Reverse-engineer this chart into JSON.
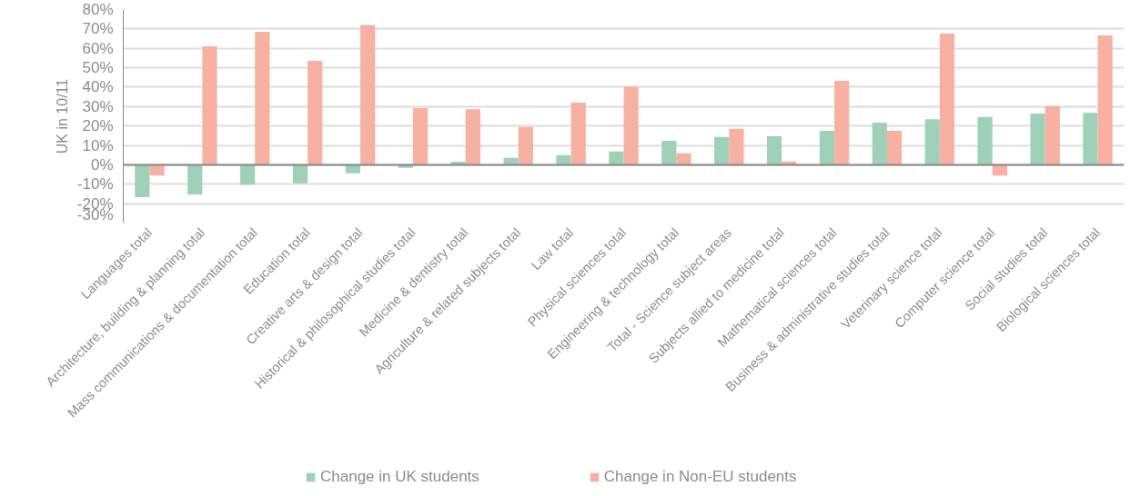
{
  "chart_data": {
    "type": "bar",
    "ylabel": "UK in 10/11",
    "categories": [
      "Languages total",
      "Architecture, building & planning total",
      "Mass communications & documentation total",
      "Education total",
      "Creative arts & design total",
      "Historical & philosophical studies total",
      "Medicine & dentistry total",
      "Agriculture & related subjects total",
      "Law total",
      "Physical sciences total",
      "Engineering & technology total",
      "Total - Science subject areas",
      "Subjects allied to medicine total",
      "Mathematical sciences total",
      "Business & administrative studies total",
      "Veterinary science total",
      "Computer science total",
      "Social studies total",
      "Biological sciences total"
    ],
    "series": [
      {
        "name": "Change in UK students",
        "color": "#9fd1b9",
        "values": [
          -16.7,
          -15.2,
          -10.2,
          -9.5,
          -4.4,
          -1.6,
          1.6,
          3.6,
          5.0,
          6.9,
          12.4,
          14.4,
          14.7,
          17.5,
          21.7,
          23.5,
          24.7,
          26.4,
          26.7
        ]
      },
      {
        "name": "Change in Non-EU students",
        "color": "#f8b0a2",
        "values": [
          -5.6,
          61.0,
          68.5,
          53.5,
          72.1,
          29.2,
          28.6,
          19.5,
          32.0,
          40.2,
          5.9,
          18.6,
          1.7,
          43.3,
          17.5,
          67.6,
          -5.6,
          30.3,
          66.7
        ]
      }
    ],
    "ylim": [
      -30,
      80
    ],
    "yticks": [
      {
        "value": -30,
        "label": "-30%"
      },
      {
        "value": -20,
        "label": "-20%"
      },
      {
        "value": -10,
        "label": "-10%"
      },
      {
        "value": 0,
        "label": "0%"
      },
      {
        "value": 10,
        "label": "10%"
      },
      {
        "value": 20,
        "label": "20%"
      },
      {
        "value": 30,
        "label": "30%"
      },
      {
        "value": 40,
        "label": "40%"
      },
      {
        "value": 50,
        "label": "50%"
      },
      {
        "value": 60,
        "label": "60%"
      },
      {
        "value": 70,
        "label": "70%"
      },
      {
        "value": 80,
        "label": "80%"
      }
    ],
    "grid": "y",
    "legend": "bottom"
  }
}
